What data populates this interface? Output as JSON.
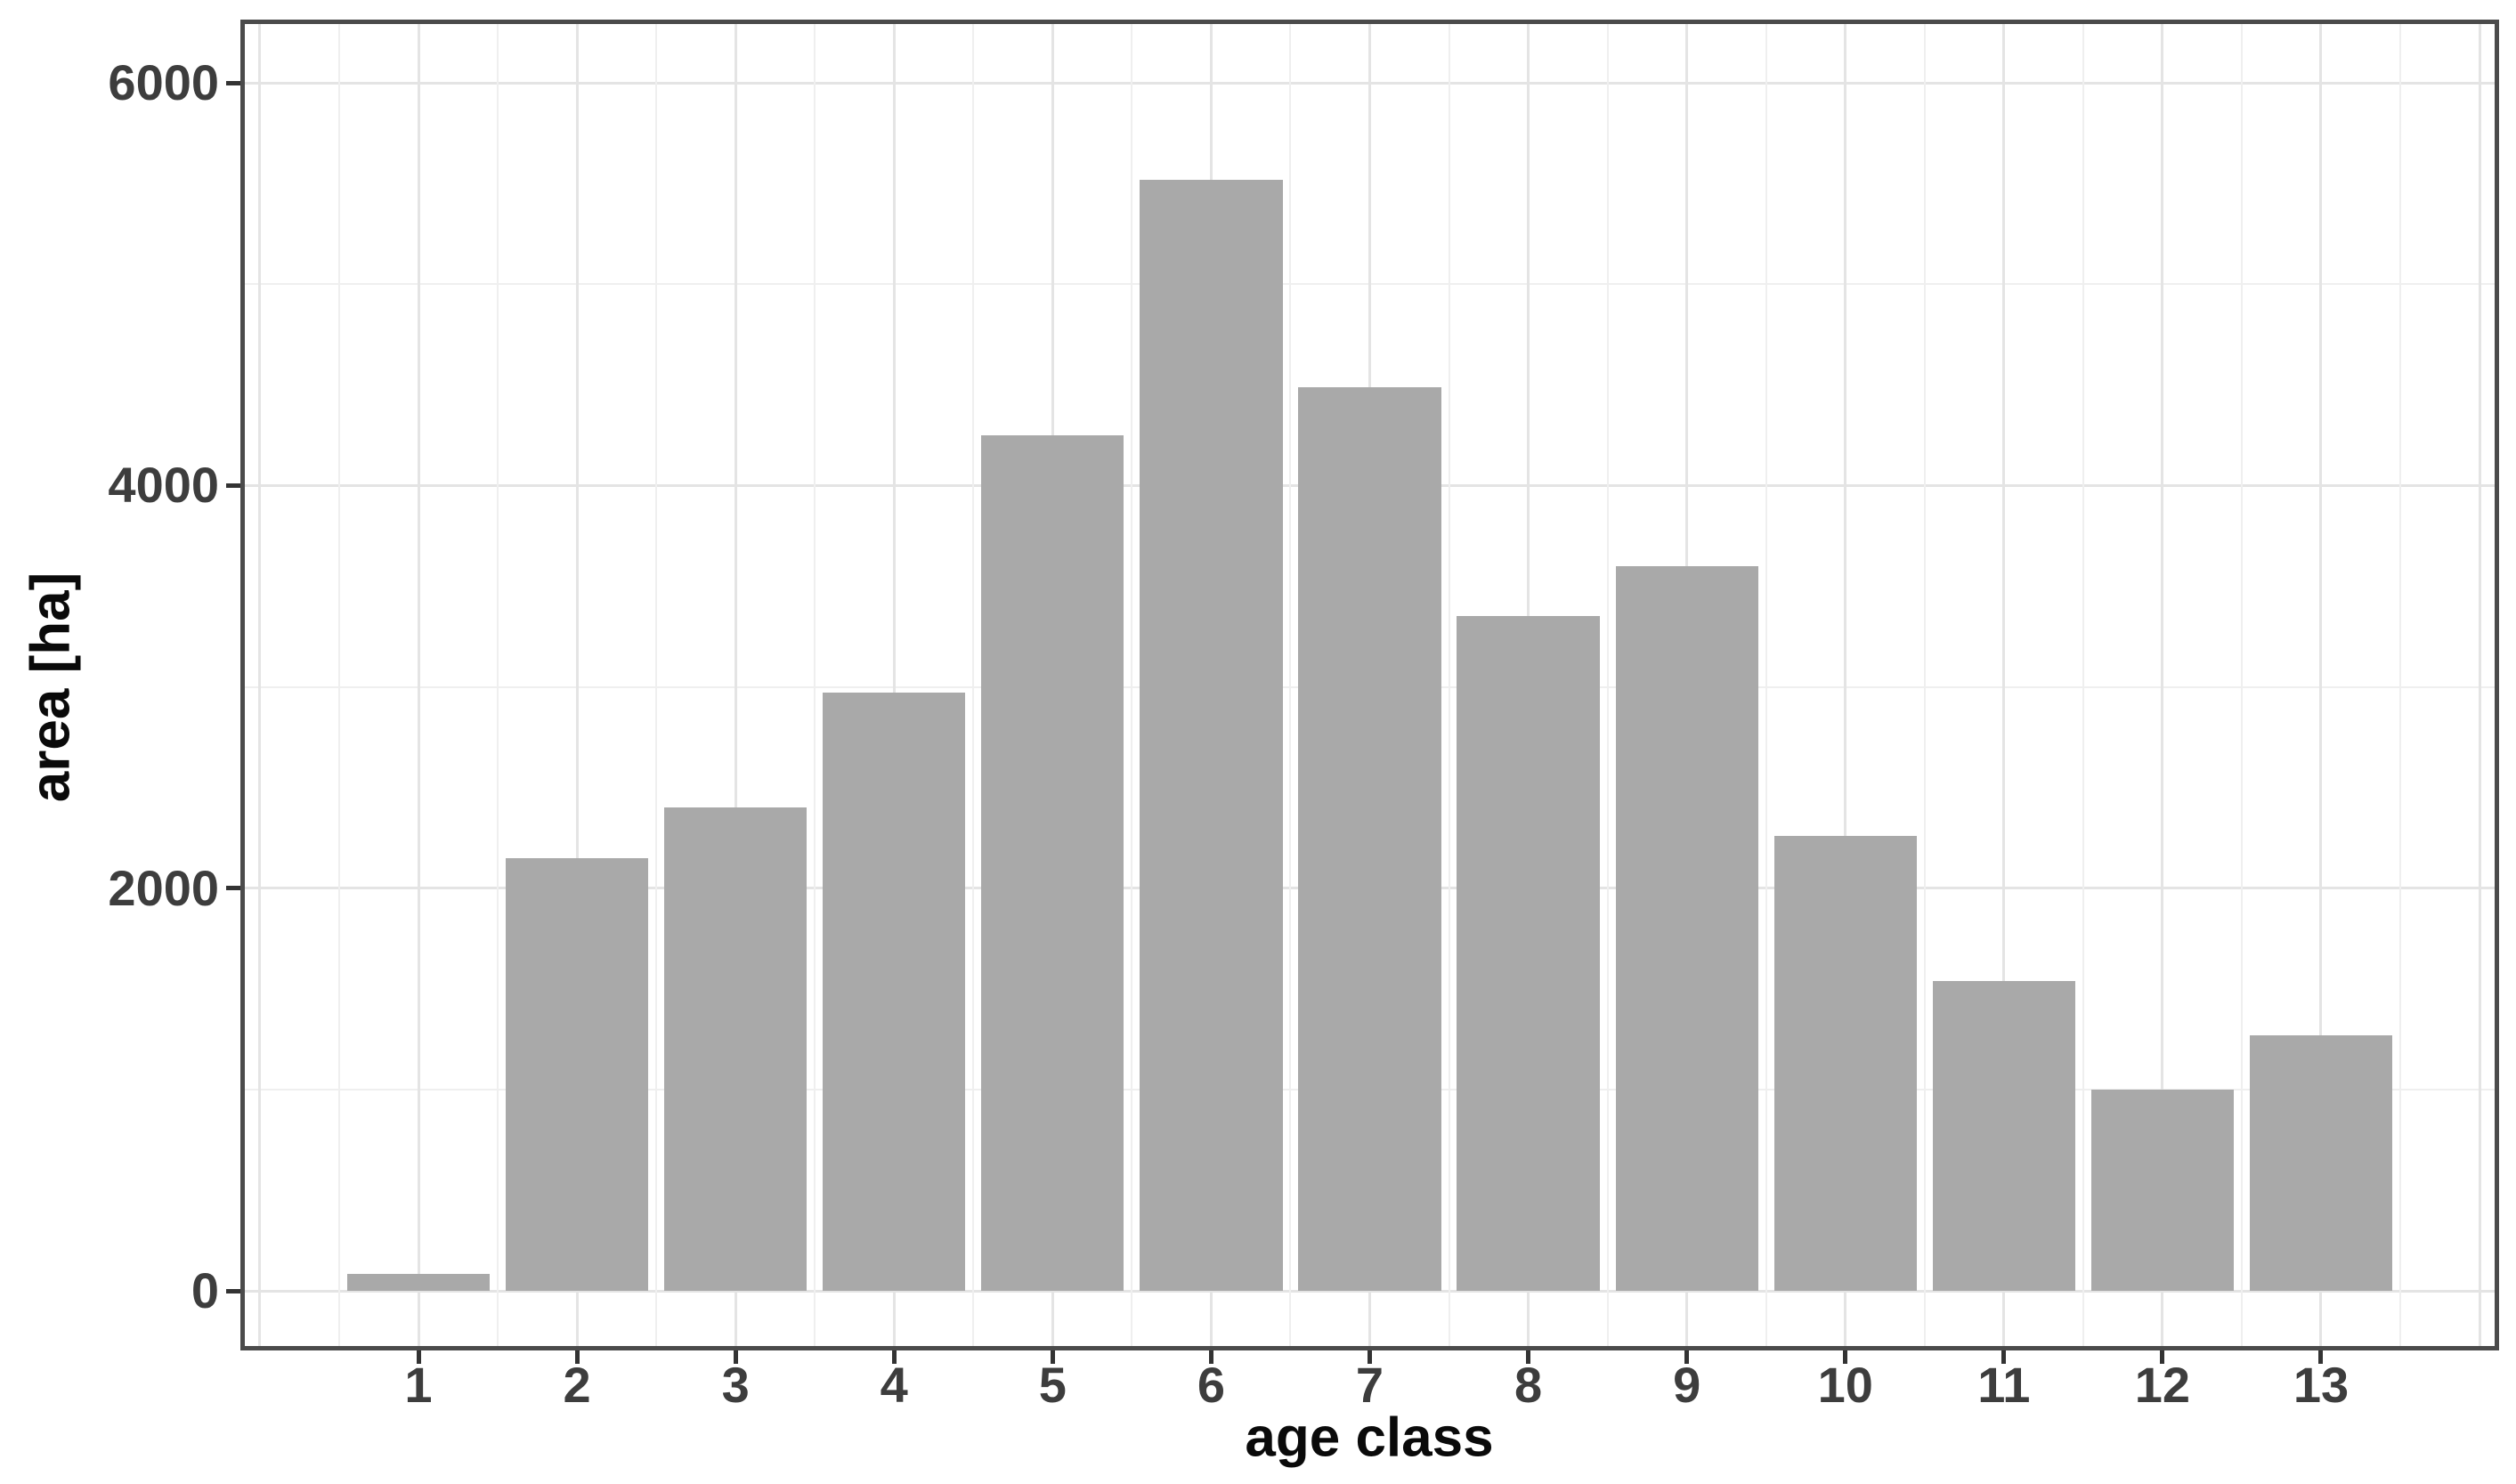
{
  "chart_data": {
    "type": "bar",
    "title": "",
    "xlabel": "age class",
    "ylabel": "area [ha]",
    "categories": [
      "1",
      "2",
      "3",
      "4",
      "5",
      "6",
      "7",
      "8",
      "9",
      "10",
      "11",
      "12",
      "13"
    ],
    "values": [
      85,
      2150,
      2400,
      2970,
      4250,
      5520,
      4490,
      3350,
      3600,
      2260,
      1540,
      1000,
      1270
    ],
    "series": [
      {
        "name": "area",
        "values": [
          85,
          2150,
          2400,
          2970,
          4250,
          5520,
          4490,
          3350,
          3600,
          2260,
          1540,
          1000,
          1270
        ]
      }
    ],
    "y_axis": {
      "tick_values": [
        0,
        2000,
        4000,
        6000
      ],
      "tick_labels": [
        "0",
        "2000",
        "4000",
        "6000"
      ],
      "minor_tick_values": [
        1000,
        3000,
        5000
      ],
      "range": [
        -274,
        6292
      ]
    },
    "x_axis": {
      "tick_labels": [
        "1",
        "2",
        "3",
        "4",
        "5",
        "6",
        "7",
        "8",
        "9",
        "10",
        "11",
        "12",
        "13"
      ],
      "range": [
        -0.095,
        14.095
      ]
    },
    "grid": "on",
    "legend": "none",
    "bar_width_fraction": 0.9,
    "colors": {
      "bar_fill": "#a9a9a9",
      "grid_major": "#e4e4e4",
      "grid_minor": "#efefef",
      "panel_border": "#4b4b4b",
      "tick_mark": "#333333",
      "tick_label": "#3d3d3d",
      "axis_title": "#0a0a0a",
      "background": "#ffffff"
    }
  }
}
